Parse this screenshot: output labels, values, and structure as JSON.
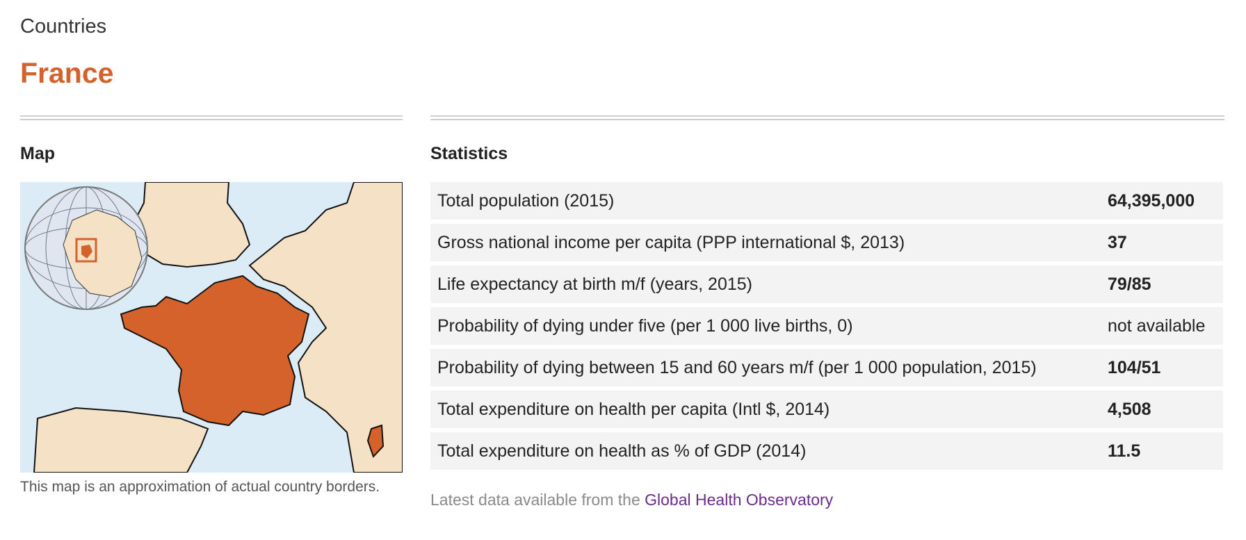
{
  "breadcrumb": "Countries",
  "title": "France",
  "map": {
    "heading": "Map",
    "caption": "This map is an approximation of actual country borders.",
    "highlight_color": "#d4622a",
    "land_color": "#f5e1c5",
    "sea_color": "#dcecf7"
  },
  "statistics": {
    "heading": "Statistics",
    "rows": [
      {
        "label": "Total population (2015)",
        "value": "64,395,000"
      },
      {
        "label": "Gross national income per capita (PPP international $, 2013)",
        "value": "37"
      },
      {
        "label": "Life expectancy at birth m/f (years, 2015)",
        "value": "79/85"
      },
      {
        "label": "Probability of dying under five (per 1 000 live births, 0)",
        "value": "not available"
      },
      {
        "label": "Probability of dying between 15 and 60 years m/f (per 1 000 population, 2015)",
        "value": "104/51"
      },
      {
        "label": "Total expenditure on health per capita (Intl $, 2014)",
        "value": "4,508"
      },
      {
        "label": "Total expenditure on health as % of GDP (2014)",
        "value": "11.5"
      }
    ]
  },
  "source": {
    "prefix": "Latest data available from the",
    "link_text": "Global Health Observatory"
  },
  "colors": {
    "accent": "#d4622a",
    "link": "#6b2c8c",
    "row_bg": "#f3f3f3"
  }
}
